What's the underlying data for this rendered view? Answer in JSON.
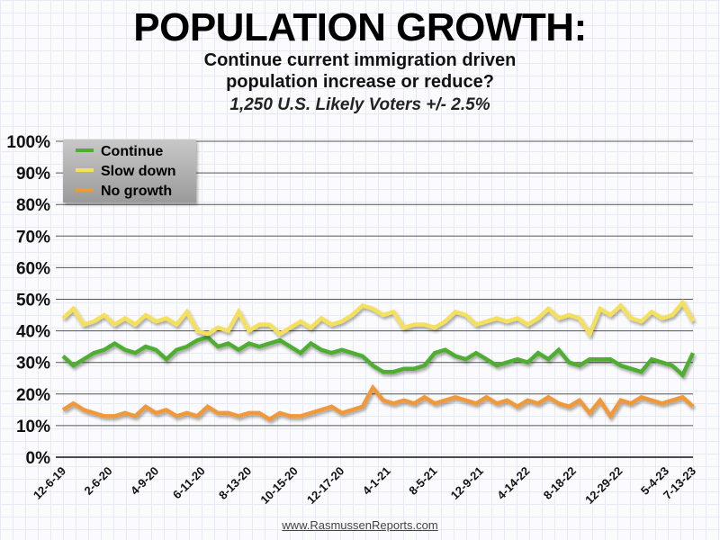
{
  "chart_data": {
    "type": "line",
    "title": "POPULATION GROWTH:",
    "subtitle": [
      "Continue current immigration driven",
      "population increase or reduce?"
    ],
    "note": "1,250 U.S. Likely Voters +/- 2.5%",
    "source": "www.RasmussenReports.com",
    "ylim": [
      0,
      100
    ],
    "y_ticks": [
      "0%",
      "10%",
      "20%",
      "30%",
      "40%",
      "50%",
      "60%",
      "70%",
      "80%",
      "90%",
      "100%"
    ],
    "x_tick_labels": [
      "12-6-19",
      "2-6-20",
      "4-9-20",
      "6-11-20",
      "8-13-20",
      "10-15-20",
      "12-17-20",
      "4-1-21",
      "8-5-21",
      "12-9-21",
      "4-14-22",
      "8-18-22",
      "12-29-22",
      "5-4-23",
      "7-13-23"
    ],
    "grid": true,
    "legend_position": "top-left",
    "series": [
      {
        "name": "Continue",
        "color": "#4fae32",
        "values": [
          32,
          29,
          31,
          33,
          34,
          36,
          34,
          33,
          35,
          34,
          31,
          34,
          35,
          37,
          38,
          35,
          36,
          34,
          36,
          35,
          36,
          37,
          35,
          33,
          36,
          34,
          33,
          34,
          33,
          32,
          29,
          27,
          27,
          28,
          28,
          29,
          33,
          34,
          32,
          31,
          33,
          31,
          29,
          30,
          31,
          30,
          33,
          31,
          34,
          30,
          29,
          31,
          31,
          31,
          29,
          28,
          27,
          31,
          30,
          29,
          26,
          33
        ]
      },
      {
        "name": "Slow down",
        "color": "#f4e05a",
        "values": [
          44,
          47,
          42,
          43,
          45,
          42,
          44,
          42,
          45,
          43,
          44,
          42,
          46,
          40,
          39,
          41,
          40,
          46,
          40,
          42,
          42,
          39,
          41,
          43,
          41,
          44,
          42,
          43,
          45,
          48,
          47,
          45,
          46,
          41,
          42,
          42,
          41,
          43,
          46,
          45,
          42,
          43,
          44,
          43,
          44,
          42,
          44,
          47,
          44,
          45,
          44,
          39,
          47,
          45,
          48,
          44,
          43,
          46,
          44,
          45,
          49,
          43
        ]
      },
      {
        "name": "No growth",
        "color": "#f0993a",
        "values": [
          15,
          17,
          15,
          14,
          13,
          13,
          14,
          13,
          16,
          14,
          15,
          13,
          14,
          13,
          16,
          14,
          14,
          13,
          14,
          14,
          12,
          14,
          13,
          13,
          14,
          15,
          16,
          14,
          15,
          16,
          22,
          18,
          17,
          18,
          17,
          19,
          17,
          18,
          19,
          18,
          17,
          19,
          17,
          18,
          16,
          18,
          17,
          19,
          17,
          16,
          18,
          14,
          18,
          13,
          18,
          17,
          19,
          18,
          17,
          18,
          19,
          16
        ]
      }
    ]
  }
}
